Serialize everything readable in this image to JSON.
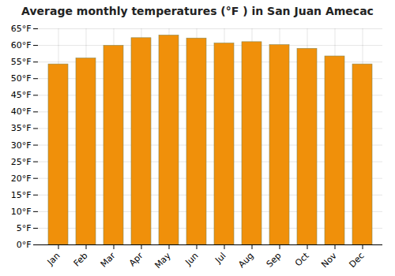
{
  "chart_data": {
    "type": "bar",
    "title": "Average monthly temperatures (°F ) in San Juan Amecac",
    "categories": [
      "Jan",
      "Feb",
      "Mar",
      "Apr",
      "May",
      "Jun",
      "Jul",
      "Aug",
      "Sep",
      "Oct",
      "Nov",
      "Dec"
    ],
    "values": [
      54.3,
      56.1,
      59.9,
      62.2,
      63.0,
      62.1,
      60.6,
      61.0,
      60.1,
      59.0,
      56.7,
      54.3
    ],
    "color": "#F0900A",
    "ylim": [
      0,
      65
    ],
    "yticks": [
      {
        "value": 0,
        "label": "0°F"
      },
      {
        "value": 5,
        "label": "5°F"
      },
      {
        "value": 10,
        "label": "10°F"
      },
      {
        "value": 15,
        "label": "15°F"
      },
      {
        "value": 20,
        "label": "20°F"
      },
      {
        "value": 25,
        "label": "25°F"
      },
      {
        "value": 30,
        "label": "30°F"
      },
      {
        "value": 35,
        "label": "35°F"
      },
      {
        "value": 40,
        "label": "40°F"
      },
      {
        "value": 45,
        "label": "45°F"
      },
      {
        "value": 50,
        "label": "50°F"
      },
      {
        "value": 55,
        "label": "55°F"
      },
      {
        "value": 60,
        "label": "60°F"
      },
      {
        "value": 65,
        "label": "65°F"
      }
    ],
    "grid": true
  }
}
